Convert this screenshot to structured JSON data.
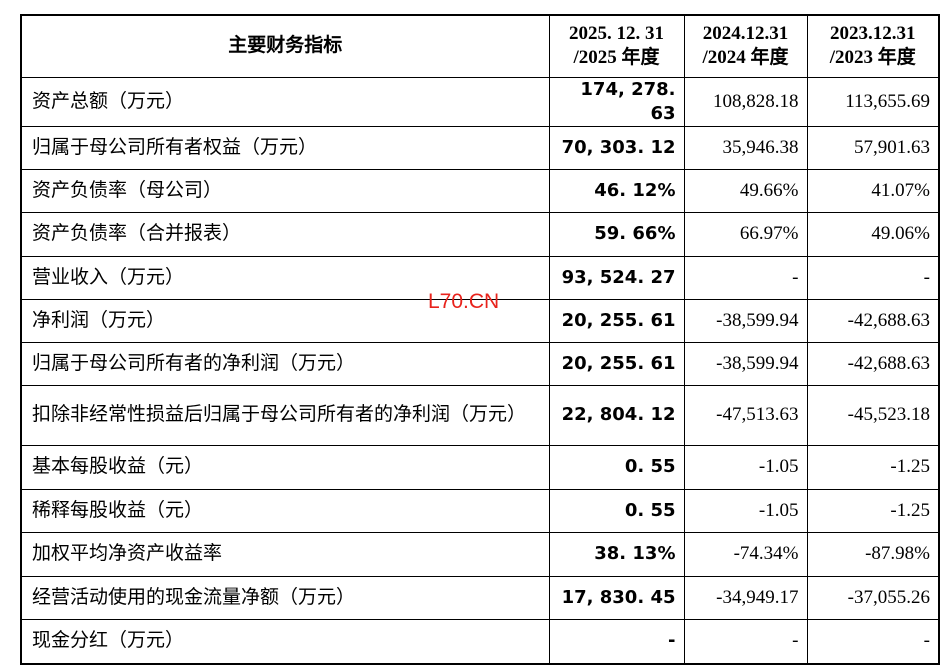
{
  "table": {
    "header": [
      [
        "主要财务指标"
      ],
      [
        "2025. 12. 31",
        "/2025 年度"
      ],
      [
        "2024.12.31",
        "/2024 年度"
      ],
      [
        "2023.12.31",
        "/2023 年度"
      ]
    ],
    "rows": [
      [
        "资产总额（万元）",
        "174, 278. 63",
        "108,828.18",
        "113,655.69"
      ],
      [
        "归属于母公司所有者权益（万元）",
        "70, 303. 12",
        "35,946.38",
        "57,901.63"
      ],
      [
        "资产负债率（母公司）",
        "46. 12%",
        "49.66%",
        "41.07%"
      ],
      [
        "资产负债率（合并报表）",
        "59. 66%",
        "66.97%",
        "49.06%"
      ],
      [
        "营业收入（万元）",
        "93, 524. 27",
        "-",
        "-"
      ],
      [
        "净利润（万元）",
        "20, 255. 61",
        "-38,599.94",
        "-42,688.63"
      ],
      [
        "归属于母公司所有者的净利润（万元）",
        "20, 255. 61",
        "-38,599.94",
        "-42,688.63"
      ],
      [
        "扣除非经常性损益后归属于母公司所有者的净利润（万元）",
        "22, 804. 12",
        "-47,513.63",
        "-45,523.18"
      ],
      [
        "基本每股收益（元）",
        "0. 55",
        "-1.05",
        "-1.25"
      ],
      [
        "稀释每股收益（元）",
        "0. 55",
        "-1.05",
        "-1.25"
      ],
      [
        "加权平均净资产收益率",
        "38. 13%",
        "-74.34%",
        "-87.98%"
      ],
      [
        "经营活动使用的现金流量净额（万元）",
        "17, 830. 45",
        "-34,949.17",
        "-37,055.26"
      ],
      [
        "现金分红（万元）",
        "-",
        "-",
        "-"
      ]
    ]
  },
  "watermark": "L70.CN"
}
